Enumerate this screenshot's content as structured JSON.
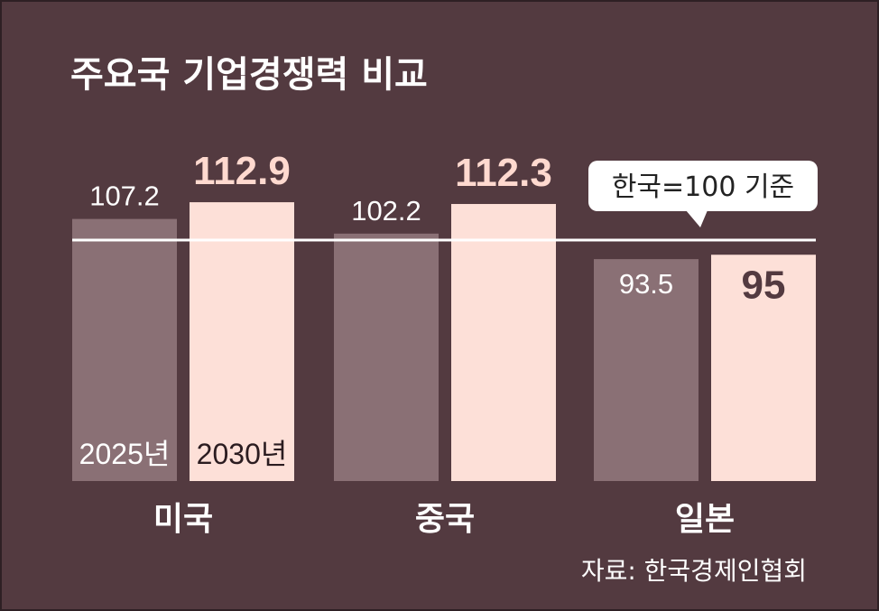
{
  "colors": {
    "background": "#533a40",
    "bar_2025": "#8a7075",
    "bar_2030": "#fde0d8",
    "baseline": "#ffffff"
  },
  "chart_data": {
    "type": "bar",
    "title": "주요국 기업경쟁력 비교",
    "categories": [
      "미국",
      "중국",
      "일본"
    ],
    "series": [
      {
        "name": "2025년",
        "values": [
          107.2,
          102.2,
          93.5
        ],
        "labels": [
          "107.2",
          "102.2",
          "93.5"
        ]
      },
      {
        "name": "2030년",
        "values": [
          112.9,
          112.3,
          95
        ],
        "labels": [
          "112.9",
          "112.3",
          "95"
        ]
      }
    ],
    "reference_line": {
      "value": 100,
      "label": "한국=100 기준"
    },
    "source": "자료: 한국경제인협회",
    "grid": false,
    "legend": "inside-first-group-bars"
  }
}
